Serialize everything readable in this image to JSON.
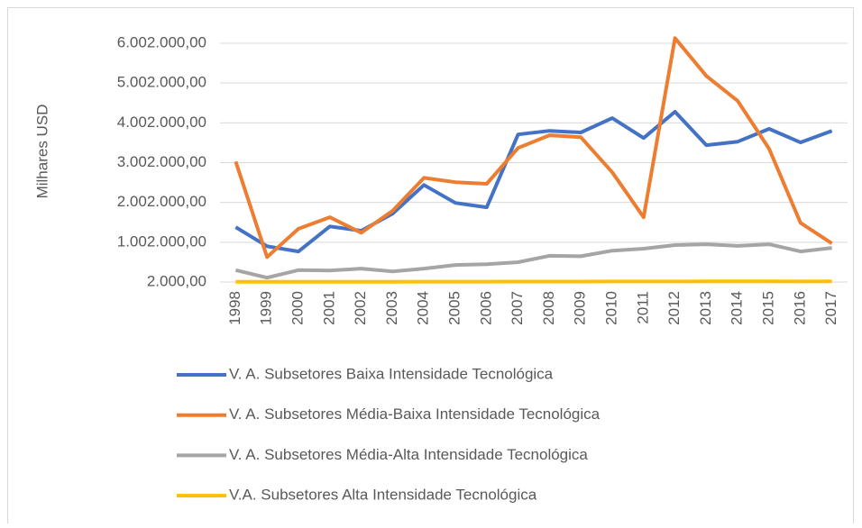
{
  "chart_data": {
    "type": "line",
    "y_label": "Milhares USD",
    "categories": [
      "1998",
      "1999",
      "2000",
      "2001",
      "2002",
      "2003",
      "2004",
      "2005",
      "2006",
      "2007",
      "2008",
      "2009",
      "2010",
      "2011",
      "2012",
      "2013",
      "2014",
      "2015",
      "2016",
      "2017"
    ],
    "series": [
      {
        "name": "V. A. Subsetores Baixa Intensidade Tecnológica",
        "color": "#4472c4",
        "values": [
          1380000,
          900000,
          770000,
          1400000,
          1290000,
          1720000,
          2440000,
          1990000,
          1880000,
          3710000,
          3800000,
          3760000,
          4120000,
          3620000,
          4280000,
          3440000,
          3530000,
          3850000,
          3510000,
          3800000
        ]
      },
      {
        "name": "V. A. Subsetores Média-Baixa Intensidade Tecnológica",
        "color": "#ed7d31",
        "values": [
          3030000,
          630000,
          1340000,
          1630000,
          1240000,
          1790000,
          2620000,
          2510000,
          2470000,
          3370000,
          3690000,
          3640000,
          2760000,
          1630000,
          6130000,
          5180000,
          4550000,
          3350000,
          1490000,
          970000
        ]
      },
      {
        "name": "V. A. Subsetores Média-Alta Intensidade Tecnológica",
        "color": "#a5a5a5",
        "values": [
          300000,
          110000,
          300000,
          290000,
          340000,
          270000,
          340000,
          430000,
          450000,
          500000,
          660000,
          650000,
          790000,
          840000,
          930000,
          950000,
          910000,
          950000,
          770000,
          860000
        ]
      },
      {
        "name": "V.A. Subsetores Alta Intensidade Tecnológica",
        "color": "#ffc000",
        "values": [
          8000,
          7000,
          8000,
          8000,
          9000,
          9000,
          10000,
          11000,
          12000,
          13000,
          14000,
          14000,
          15000,
          15000,
          16000,
          17000,
          17000,
          18000,
          16000,
          17000
        ]
      }
    ],
    "ylim": [
      2000,
      6300000
    ],
    "yticks": [
      {
        "value": 2000,
        "label": "2.000,00"
      },
      {
        "value": 1002000,
        "label": "1.002.000,00"
      },
      {
        "value": 2002000,
        "label": "2.002.000,00"
      },
      {
        "value": 3002000,
        "label": "3.002.000,00"
      },
      {
        "value": 4002000,
        "label": "4.002.000,00"
      },
      {
        "value": 5002000,
        "label": "5.002.000,00"
      },
      {
        "value": 6002000,
        "label": "6.002.000,00"
      }
    ],
    "grid": true
  }
}
